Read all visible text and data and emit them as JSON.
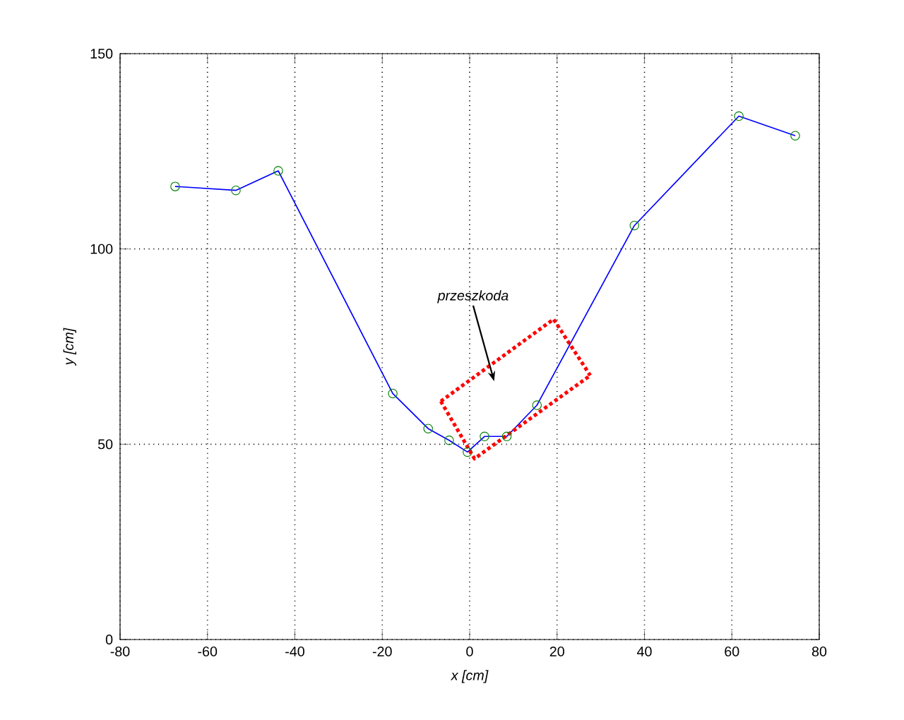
{
  "chart_data": {
    "type": "line",
    "xlabel": "x [cm]",
    "ylabel": "y [cm]",
    "xlim": [
      -80,
      80
    ],
    "ylim": [
      0,
      150
    ],
    "xticks": [
      -80,
      -60,
      -40,
      -20,
      0,
      20,
      40,
      60,
      80
    ],
    "yticks": [
      0,
      50,
      100,
      150
    ],
    "grid": true,
    "x": [
      -67.4,
      -53.5,
      -43.8,
      -17.6,
      -9.5,
      -4.7,
      -0.5,
      3.4,
      8.5,
      15.4,
      37.7,
      61.6,
      74.5
    ],
    "series": [
      {
        "color": "#0000ff",
        "marker": "none",
        "line_style": "solid",
        "values": [
          116,
          115,
          120,
          63,
          54,
          51,
          48,
          52,
          52,
          60,
          106,
          134,
          129
        ]
      },
      {
        "type": "scatter",
        "color": "#008000",
        "marker": "circle",
        "values": [
          116,
          115,
          120,
          63,
          54,
          51,
          48,
          52,
          52,
          60,
          106,
          134,
          129
        ]
      },
      {
        "type": "line",
        "color": "#ff0000",
        "marker": "none",
        "line_style": "dotted",
        "x": [
          -6.6,
          19.2,
          27.6
        ],
        "values": [
          61,
          82,
          67.6
        ]
      },
      {
        "type": "line",
        "color": "#ff0000",
        "marker": "none",
        "line_style": "dotted",
        "x": [
          -6.6,
          1.1,
          27.6
        ],
        "values": [
          61,
          46.3,
          67.6
        ]
      }
    ],
    "annotations": [
      "przeszkoda"
    ]
  }
}
